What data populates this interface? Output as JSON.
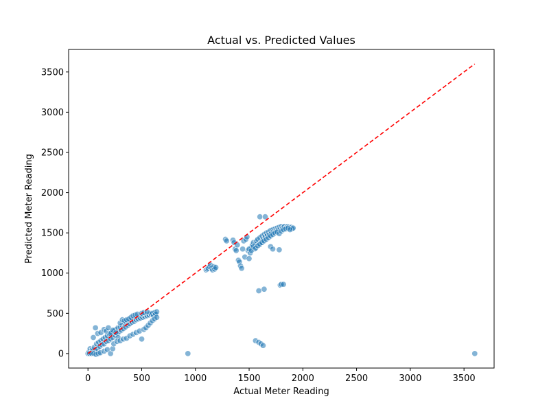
{
  "chart_data": {
    "type": "scatter",
    "title": "Actual vs. Predicted Values",
    "xlabel": "Actual Meter Reading",
    "ylabel": "Predicted Meter Reading",
    "xlim": [
      -180,
      3780
    ],
    "ylim": [
      -180,
      3780
    ],
    "xticks": [
      0,
      500,
      1000,
      1500,
      2000,
      2500,
      3000,
      3500
    ],
    "yticks": [
      0,
      500,
      1000,
      1500,
      2000,
      2500,
      3000,
      3500
    ],
    "grid": false,
    "reference_line": {
      "from": [
        0,
        0
      ],
      "to": [
        3600,
        3600
      ],
      "color": "#ff0000",
      "style": "dashed"
    },
    "point_color": "#1f77b4",
    "series": [
      {
        "points": [
          [
            0,
            0
          ],
          [
            10,
            20
          ],
          [
            20,
            60
          ],
          [
            30,
            10
          ],
          [
            40,
            50
          ],
          [
            50,
            40
          ],
          [
            60,
            80
          ],
          [
            70,
            30
          ],
          [
            80,
            120
          ],
          [
            90,
            60
          ],
          [
            100,
            140
          ],
          [
            110,
            90
          ],
          [
            120,
            160
          ],
          [
            130,
            110
          ],
          [
            140,
            180
          ],
          [
            150,
            120
          ],
          [
            160,
            200
          ],
          [
            170,
            150
          ],
          [
            180,
            220
          ],
          [
            190,
            160
          ],
          [
            200,
            240
          ],
          [
            210,
            180
          ],
          [
            220,
            260
          ],
          [
            230,
            200
          ],
          [
            240,
            280
          ],
          [
            250,
            230
          ],
          [
            260,
            300
          ],
          [
            270,
            250
          ],
          [
            280,
            320
          ],
          [
            290,
            270
          ],
          [
            300,
            330
          ],
          [
            310,
            290
          ],
          [
            320,
            350
          ],
          [
            330,
            310
          ],
          [
            340,
            370
          ],
          [
            350,
            330
          ],
          [
            360,
            380
          ],
          [
            370,
            350
          ],
          [
            380,
            400
          ],
          [
            390,
            370
          ],
          [
            400,
            410
          ],
          [
            410,
            390
          ],
          [
            420,
            420
          ],
          [
            430,
            400
          ],
          [
            440,
            430
          ],
          [
            450,
            420
          ],
          [
            460,
            440
          ],
          [
            470,
            430
          ],
          [
            480,
            450
          ],
          [
            490,
            440
          ],
          [
            500,
            460
          ],
          [
            510,
            450
          ],
          [
            520,
            470
          ],
          [
            530,
            460
          ],
          [
            540,
            480
          ],
          [
            550,
            470
          ],
          [
            560,
            490
          ],
          [
            570,
            480
          ],
          [
            580,
            500
          ],
          [
            590,
            490
          ],
          [
            600,
            500
          ],
          [
            610,
            470
          ],
          [
            620,
            510
          ],
          [
            630,
            490
          ],
          [
            640,
            520
          ],
          [
            15,
            0
          ],
          [
            35,
            0
          ],
          [
            55,
            0
          ],
          [
            75,
            -10
          ],
          [
            95,
            0
          ],
          [
            115,
            10
          ],
          [
            150,
            30
          ],
          [
            180,
            50
          ],
          [
            210,
            0
          ],
          [
            230,
            60
          ],
          [
            50,
            200
          ],
          [
            70,
            320
          ],
          [
            90,
            250
          ],
          [
            120,
            260
          ],
          [
            150,
            300
          ],
          [
            170,
            280
          ],
          [
            190,
            320
          ],
          [
            210,
            250
          ],
          [
            230,
            290
          ],
          [
            260,
            260
          ],
          [
            280,
            200
          ],
          [
            300,
            380
          ],
          [
            320,
            420
          ],
          [
            340,
            410
          ],
          [
            360,
            420
          ],
          [
            380,
            430
          ],
          [
            400,
            450
          ],
          [
            420,
            470
          ],
          [
            440,
            480
          ],
          [
            460,
            490
          ],
          [
            240,
            120
          ],
          [
            270,
            150
          ],
          [
            300,
            160
          ],
          [
            330,
            180
          ],
          [
            360,
            190
          ],
          [
            390,
            220
          ],
          [
            420,
            240
          ],
          [
            450,
            260
          ],
          [
            480,
            280
          ],
          [
            500,
            180
          ],
          [
            520,
            300
          ],
          [
            540,
            320
          ],
          [
            560,
            350
          ],
          [
            580,
            380
          ],
          [
            600,
            410
          ],
          [
            620,
            430
          ],
          [
            640,
            450
          ],
          [
            500,
            500
          ],
          [
            520,
            510
          ],
          [
            550,
            520
          ],
          [
            1100,
            1040
          ],
          [
            1110,
            1050
          ],
          [
            1120,
            1060
          ],
          [
            1130,
            1080
          ],
          [
            1140,
            1100
          ],
          [
            1150,
            1060
          ],
          [
            1160,
            1040
          ],
          [
            1170,
            1080
          ],
          [
            1180,
            1050
          ],
          [
            1190,
            1070
          ],
          [
            1280,
            1420
          ],
          [
            1290,
            1400
          ],
          [
            1350,
            1410
          ],
          [
            1360,
            1380
          ],
          [
            1370,
            1300
          ],
          [
            1380,
            1280
          ],
          [
            1390,
            1350
          ],
          [
            1400,
            1160
          ],
          [
            1410,
            1140
          ],
          [
            1420,
            1090
          ],
          [
            1430,
            1060
          ],
          [
            1440,
            1300
          ],
          [
            1450,
            1400
          ],
          [
            1460,
            1200
          ],
          [
            1470,
            1420
          ],
          [
            1480,
            1450
          ],
          [
            1490,
            1280
          ],
          [
            1500,
            1180
          ],
          [
            1510,
            1250
          ],
          [
            1520,
            1320
          ],
          [
            1530,
            1350
          ],
          [
            1540,
            1380
          ],
          [
            1550,
            1300
          ],
          [
            1560,
            1360
          ],
          [
            1570,
            1400
          ],
          [
            1580,
            1420
          ],
          [
            1590,
            1350
          ],
          [
            1600,
            1440
          ],
          [
            1610,
            1380
          ],
          [
            1620,
            1460
          ],
          [
            1630,
            1420
          ],
          [
            1640,
            1480
          ],
          [
            1650,
            1450
          ],
          [
            1660,
            1500
          ],
          [
            1670,
            1470
          ],
          [
            1680,
            1510
          ],
          [
            1690,
            1480
          ],
          [
            1700,
            1530
          ],
          [
            1710,
            1500
          ],
          [
            1720,
            1540
          ],
          [
            1730,
            1520
          ],
          [
            1740,
            1550
          ],
          [
            1750,
            1530
          ],
          [
            1760,
            1560
          ],
          [
            1770,
            1540
          ],
          [
            1780,
            1570
          ],
          [
            1790,
            1550
          ],
          [
            1800,
            1580
          ],
          [
            1810,
            1560
          ],
          [
            1820,
            1570
          ],
          [
            1830,
            1580
          ],
          [
            1840,
            1560
          ],
          [
            1850,
            1570
          ],
          [
            1860,
            1580
          ],
          [
            1870,
            1570
          ],
          [
            1880,
            1560
          ],
          [
            1890,
            1570
          ],
          [
            1900,
            1550
          ],
          [
            1910,
            1560
          ],
          [
            1500,
            1300
          ],
          [
            1520,
            1280
          ],
          [
            1540,
            1330
          ],
          [
            1560,
            1310
          ],
          [
            1580,
            1340
          ],
          [
            1600,
            1360
          ],
          [
            1620,
            1380
          ],
          [
            1640,
            1400
          ],
          [
            1660,
            1420
          ],
          [
            1680,
            1440
          ],
          [
            1700,
            1460
          ],
          [
            1720,
            1480
          ],
          [
            1740,
            1500
          ],
          [
            1760,
            1510
          ],
          [
            1780,
            1490
          ],
          [
            1800,
            1520
          ],
          [
            1820,
            1540
          ],
          [
            1840,
            1550
          ],
          [
            1860,
            1560
          ],
          [
            1880,
            1540
          ],
          [
            1600,
            1700
          ],
          [
            1650,
            1700
          ],
          [
            1700,
            1330
          ],
          [
            1720,
            1300
          ],
          [
            1780,
            1290
          ],
          [
            1790,
            850
          ],
          [
            1800,
            860
          ],
          [
            1820,
            860
          ],
          [
            1590,
            780
          ],
          [
            1640,
            800
          ],
          [
            1560,
            160
          ],
          [
            1590,
            140
          ],
          [
            1610,
            120
          ],
          [
            1630,
            100
          ],
          [
            930,
            0
          ],
          [
            3600,
            0
          ]
        ]
      }
    ]
  }
}
